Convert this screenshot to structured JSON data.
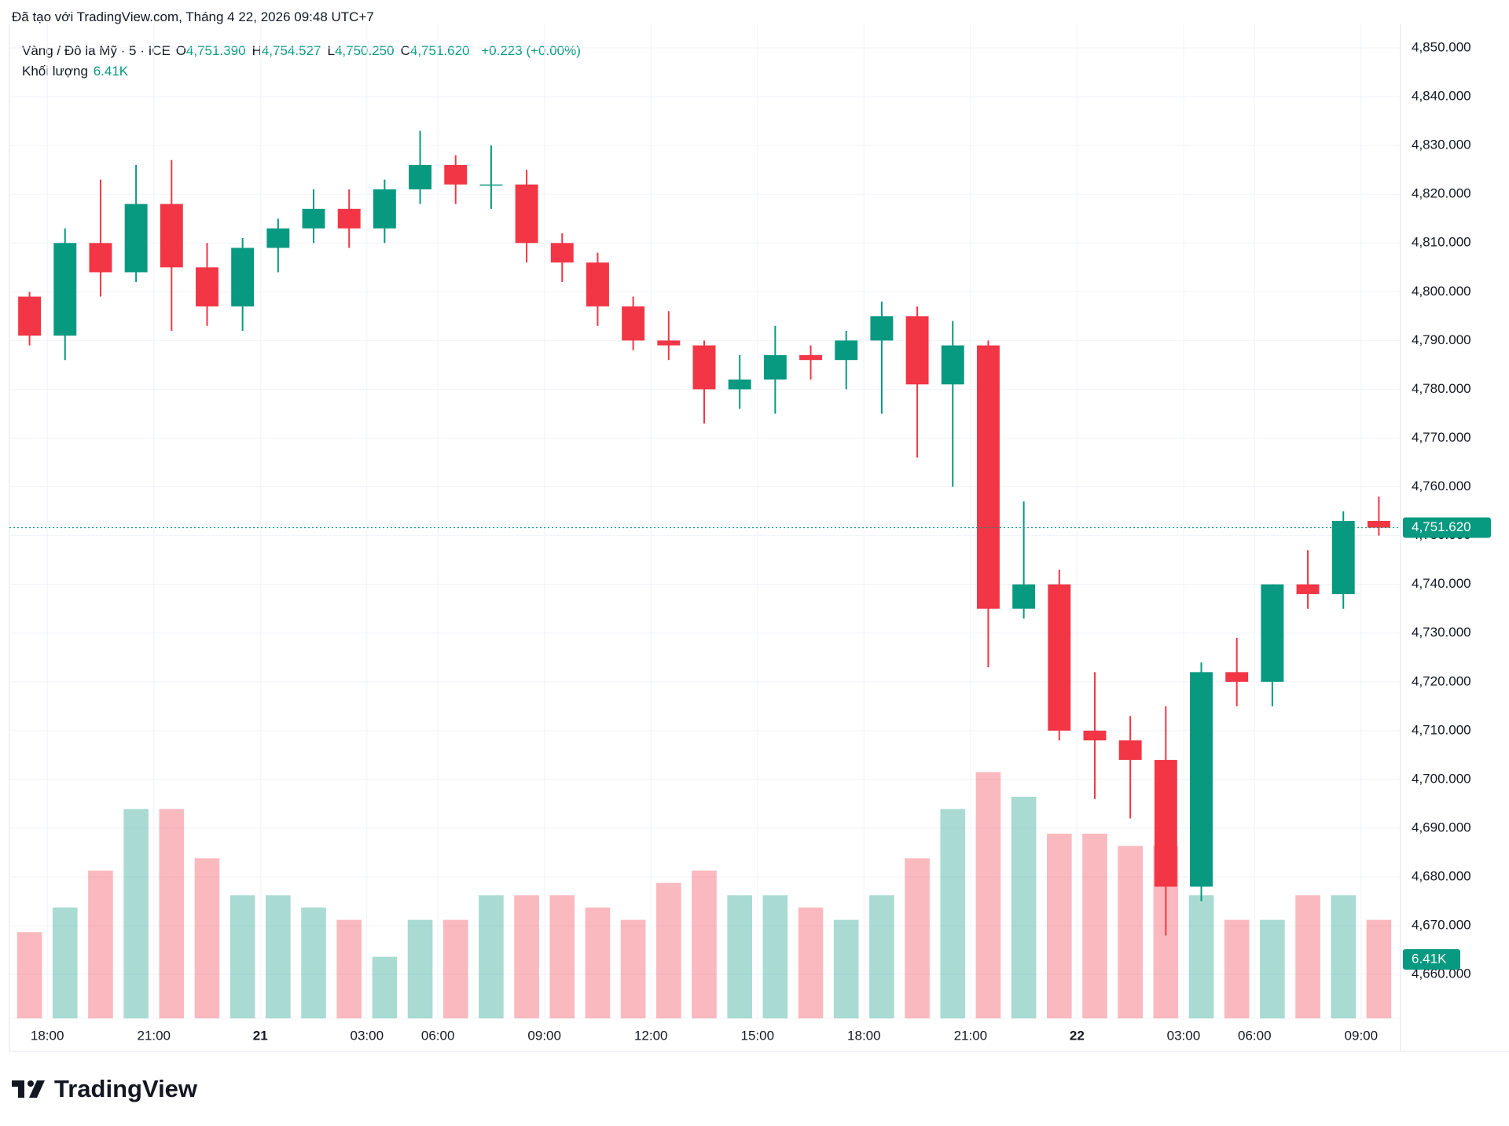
{
  "header": "Đã tạo với TradingView.com, Tháng 4 22, 2026 09:48 UTC+7",
  "logo": "TradingView",
  "chart_data": {
    "type": "candlestick",
    "symbol": "Vàng / Đô la Mỹ · 5 · ICE",
    "ohlc_legend": [
      {
        "key": "O",
        "value": "4,751.390"
      },
      {
        "key": "H",
        "value": "4,754.527"
      },
      {
        "key": "L",
        "value": "4,750.250"
      },
      {
        "key": "C",
        "value": "4,751.620"
      }
    ],
    "change": "+0.223 (+0.00%)",
    "volume_title": "Khối lượng",
    "volume_value": "6.41K",
    "categories": [
      null,
      "18:00",
      null,
      null,
      "21:00",
      null,
      null,
      "21",
      null,
      null,
      "03:00",
      null,
      "06:00",
      null,
      null,
      "09:00",
      null,
      null,
      "12:00",
      null,
      null,
      "15:00",
      null,
      null,
      "18:00",
      null,
      null,
      "21:00",
      null,
      null,
      "22",
      null,
      null,
      "03:00",
      null,
      "06:00",
      null,
      null,
      "09:00"
    ],
    "open": [
      4799,
      4791,
      4810,
      4804,
      4818,
      4805,
      4797,
      4809,
      4813,
      4817,
      4813,
      4821,
      4826,
      4822,
      4822,
      4810,
      4806,
      4797,
      4790,
      4789,
      4780,
      4782,
      4787,
      4786,
      4790,
      4795,
      4781,
      4789,
      4735,
      4740,
      4710,
      4708,
      4704,
      4678,
      4722,
      4720,
      4740,
      4738,
      4753
    ],
    "high": [
      4800,
      4813,
      4823,
      4826,
      4827,
      4810,
      4811,
      4815,
      4821,
      4821,
      4823,
      4833,
      4828,
      4830,
      4825,
      4812,
      4808,
      4799,
      4796,
      4790,
      4787,
      4793,
      4789,
      4792,
      4798,
      4797,
      4794,
      4790,
      4757,
      4743,
      4722,
      4713,
      4715,
      4724,
      4729,
      4740,
      4747,
      4755,
      4758
    ],
    "low": [
      4789,
      4786,
      4799,
      4802,
      4792,
      4793,
      4792,
      4804,
      4810,
      4809,
      4810,
      4818,
      4818,
      4817,
      4806,
      4802,
      4793,
      4788,
      4786,
      4773,
      4776,
      4775,
      4782,
      4780,
      4775,
      4766,
      4760,
      4723,
      4733,
      4708,
      4696,
      4692,
      4668,
      4675,
      4715,
      4715,
      4735,
      4735,
      4750
    ],
    "close": [
      4791,
      4810,
      4804,
      4818,
      4805,
      4797,
      4809,
      4813,
      4817,
      4813,
      4821,
      4826,
      4822,
      4822,
      4810,
      4806,
      4797,
      4790,
      4789,
      4780,
      4782,
      4787,
      4786,
      4790,
      4795,
      4781,
      4789,
      4735,
      4740,
      4710,
      4708,
      4704,
      4678,
      4722,
      4720,
      4740,
      4738,
      4753,
      4751.62
    ],
    "volume": [
      7,
      9,
      12,
      17,
      17,
      13,
      10,
      10,
      9,
      8,
      5,
      8,
      8,
      10,
      10,
      10,
      9,
      8,
      11,
      12,
      10,
      10,
      9,
      8,
      10,
      13,
      17,
      20,
      18,
      15,
      15,
      14,
      14,
      10,
      8,
      8,
      10,
      10,
      8
    ],
    "colors": {
      "up": "#089981",
      "down": "#f23645"
    },
    "ylim": [
      4651,
      4853
    ],
    "yticks": [
      {
        "value": 4660,
        "label": "4,660.000"
      },
      {
        "value": 4670,
        "label": "4,670.000"
      },
      {
        "value": 4680,
        "label": "4,680.000"
      },
      {
        "value": 4690,
        "label": "4,690.000"
      },
      {
        "value": 4700,
        "label": "4,700.000"
      },
      {
        "value": 4710,
        "label": "4,710.000"
      },
      {
        "value": 4720,
        "label": "4,720.000"
      },
      {
        "value": 4730,
        "label": "4,730.000"
      },
      {
        "value": 4740,
        "label": "4,740.000"
      },
      {
        "value": 4750,
        "label": "4,750.000"
      },
      {
        "value": 4760,
        "label": "4,760.000"
      },
      {
        "value": 4770,
        "label": "4,770.000"
      },
      {
        "value": 4780,
        "label": "4,780.000"
      },
      {
        "value": 4790,
        "label": "4,790.000"
      },
      {
        "value": 4800,
        "label": "4,800.000"
      },
      {
        "value": 4810,
        "label": "4,810.000"
      },
      {
        "value": 4820,
        "label": "4,820.000"
      },
      {
        "value": 4830,
        "label": "4,830.000"
      },
      {
        "value": 4840,
        "label": "4,840.000"
      },
      {
        "value": 4850,
        "label": "4,850.000"
      }
    ],
    "grid": true,
    "last_price": {
      "value": 4751.62,
      "label": "4,751.620"
    }
  }
}
